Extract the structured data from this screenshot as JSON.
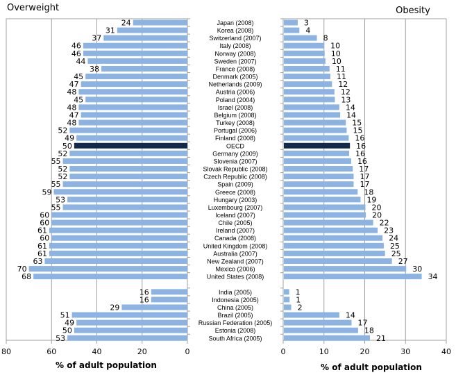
{
  "chart_data": [
    {
      "type": "bar",
      "orientation": "horizontal",
      "direction": "right-to-left",
      "title": "Overweight",
      "xlabel": "% of adult population",
      "ylabel": "",
      "xlim": [
        0,
        80
      ],
      "xticks": [
        "80",
        "60",
        "40",
        "20",
        "0"
      ],
      "grid": true,
      "highlight_category": "OECD",
      "colors": {
        "bar": "#8DB3E2",
        "highlight": "#13294B"
      },
      "categories": [
        "Japan (2008)",
        "Korea (2008)",
        "Switzerland (2007)",
        "Italy (2008)",
        "Norway (2008)",
        "Sweden (2007)",
        "France (2008)",
        "Denmark (2005)",
        "Netherlands (2009)",
        "Austria (2006)",
        "Poland (2004)",
        "Israel (2008)",
        "Belgium (2008)",
        "Turkey (2008)",
        "Portugal (2006)",
        "Finland (2008)",
        "OECD",
        "Germany (2009)",
        "Slovenia (2007)",
        "Slovak Republic (2008)",
        "Czech Republic (2008)",
        "Spain (2009)",
        "Greece (2008)",
        "Hungary (2003)",
        "Luxembourg (2007)",
        "Iceland (2007)",
        "Chile (2005)",
        "Ireland (2007)",
        "Canada (2008)",
        "United Kingdom (2008)",
        "Australia (2007)",
        "New Zealand (2007)",
        "Mexico (2006)",
        "United States (2008)",
        "India (2005)",
        "Indonesia (2005)",
        "China (2005)",
        "Brazil (2005)",
        "Russian Federation (2005)",
        "Estonia (2008)",
        "South Africa (2005)"
      ],
      "values": [
        24,
        31,
        37,
        46,
        46,
        44,
        38,
        45,
        47,
        48,
        45,
        48,
        47,
        48,
        52,
        49,
        50,
        52,
        55,
        52,
        52,
        55,
        59,
        53,
        55,
        60,
        60,
        61,
        60,
        61,
        61,
        63,
        70,
        68,
        16,
        16,
        29,
        51,
        49,
        50,
        53
      ]
    },
    {
      "type": "bar",
      "orientation": "horizontal",
      "direction": "left-to-right",
      "title": "Obesity",
      "xlabel": "% of adult population",
      "ylabel": "",
      "xlim": [
        0,
        40
      ],
      "xticks": [
        "0",
        "10",
        "20",
        "30",
        "40"
      ],
      "grid": true,
      "highlight_category": "OECD",
      "colors": {
        "bar": "#8DB3E2",
        "highlight": "#13294B"
      },
      "categories": [
        "Japan (2008)",
        "Korea (2008)",
        "Switzerland (2007)",
        "Italy (2008)",
        "Norway (2008)",
        "Sweden (2007)",
        "France (2008)",
        "Denmark (2005)",
        "Netherlands (2009)",
        "Austria (2006)",
        "Poland (2004)",
        "Israel (2008)",
        "Belgium (2008)",
        "Turkey (2008)",
        "Portugal (2006)",
        "Finland (2008)",
        "OECD",
        "Germany (2009)",
        "Slovenia (2007)",
        "Slovak Republic (2008)",
        "Czech Republic (2008)",
        "Spain (2009)",
        "Greece (2008)",
        "Hungary (2003)",
        "Luxembourg (2007)",
        "Iceland (2007)",
        "Chile (2005)",
        "Ireland (2007)",
        "Canada (2008)",
        "United Kingdom (2008)",
        "Australia (2007)",
        "New Zealand (2007)",
        "Mexico (2006)",
        "United States (2008)",
        "India (2005)",
        "Indonesia (2005)",
        "China (2005)",
        "Brazil (2005)",
        "Russian Federation (2005)",
        "Estonia (2008)",
        "South Africa (2005)"
      ],
      "values": [
        3.4,
        3.8,
        8.1,
        9.9,
        10.0,
        10.2,
        11.2,
        11.4,
        11.8,
        12.4,
        12.5,
        13.6,
        13.8,
        15.2,
        15.4,
        15.9,
        16.2,
        16.0,
        16.5,
        16.9,
        17.1,
        17.1,
        18.1,
        18.8,
        20.0,
        20.1,
        21.9,
        23.0,
        24.2,
        24.5,
        24.8,
        26.5,
        30.0,
        33.8,
        1.3,
        1.4,
        1.8,
        13.6,
        16.6,
        18.2,
        21.1
      ],
      "labels": [
        "3",
        "4",
        "8",
        "10",
        "10",
        "10",
        "11",
        "11",
        "12",
        "12",
        "13",
        "14",
        "14",
        "15",
        "15",
        "16",
        "16",
        "16",
        "16",
        "17",
        "17",
        "17",
        "18",
        "19",
        "20",
        "20",
        "22",
        "23",
        "24",
        "25",
        "25",
        "27",
        "30",
        "34",
        "1",
        "1",
        "2",
        "14",
        "17",
        "18",
        "21"
      ]
    }
  ]
}
